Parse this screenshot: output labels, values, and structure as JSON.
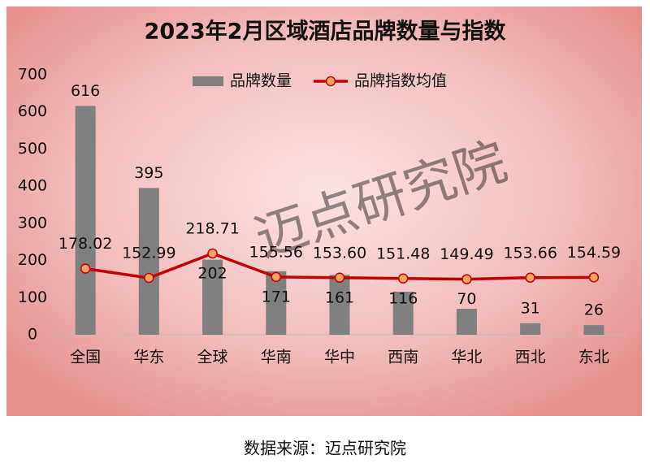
{
  "chart_data": {
    "type": "bar_line",
    "title": "2023年2月区域酒店品牌数量与指数",
    "categories": [
      "全国",
      "华东",
      "全球",
      "华南",
      "华中",
      "西南",
      "华北",
      "西北",
      "东北"
    ],
    "series": [
      {
        "name": "品牌数量",
        "type": "bar",
        "color": "#808080",
        "values": [
          616,
          395,
          202,
          171,
          161,
          116,
          70,
          31,
          26
        ]
      },
      {
        "name": "品牌指数均值",
        "type": "line",
        "color": "#c00000",
        "values": [
          178.02,
          152.99,
          218.71,
          155.56,
          153.6,
          151.48,
          149.49,
          153.66,
          154.59
        ],
        "value_labels": [
          "178.02",
          "152.99",
          "218.71",
          "155.56",
          "153.60",
          "151.48",
          "149.49",
          "153.66",
          "154.59"
        ]
      }
    ],
    "ylim": [
      0,
      700
    ],
    "yticks": [
      0,
      100,
      200,
      300,
      400,
      500,
      600,
      700
    ],
    "legend": "top",
    "watermark": "迈点研究院",
    "source": "数据来源：迈点研究院"
  }
}
